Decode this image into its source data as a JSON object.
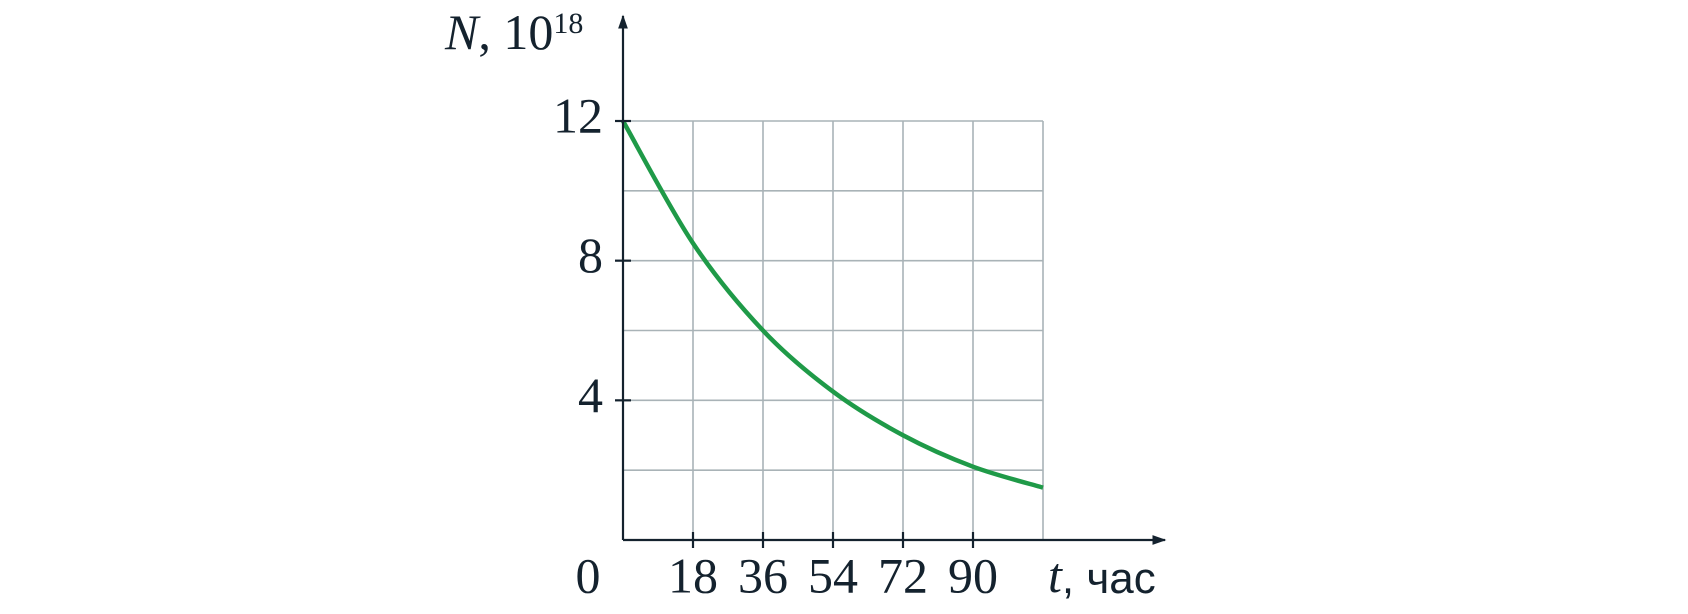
{
  "chart_data": {
    "type": "line",
    "ylabel": {
      "var": "N",
      "text": ", 10",
      "exp": "18"
    },
    "xlabel": {
      "var": "t",
      "text": ", час"
    },
    "x": [
      0,
      18,
      36,
      54,
      72,
      90,
      108
    ],
    "series": [
      {
        "color": "#1f9a48",
        "values": [
          12,
          8.5,
          6,
          4.25,
          3,
          2.1,
          1.5
        ]
      }
    ],
    "xlim": [
      0,
      108
    ],
    "ylim": [
      0,
      12
    ],
    "xticks": [
      0,
      18,
      36,
      54,
      72,
      90
    ],
    "yticks": [
      4,
      8,
      12
    ],
    "xminor": [
      108
    ],
    "yminor": [
      2,
      6,
      10
    ],
    "grid": true
  }
}
